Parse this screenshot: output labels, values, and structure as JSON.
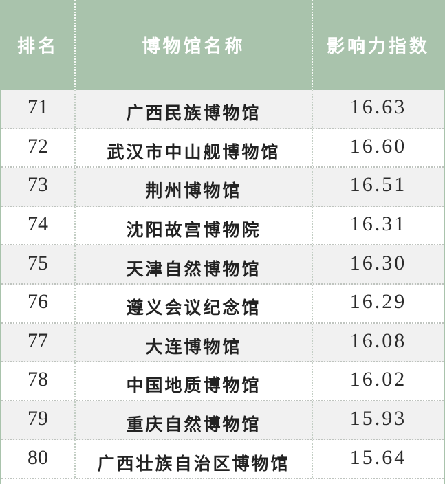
{
  "chart_data": {
    "type": "table",
    "columns": [
      "排名",
      "博物馆名称",
      "影响力指数"
    ],
    "rows": [
      {
        "rank": "71",
        "name": "广西民族博物馆",
        "index": "16.63"
      },
      {
        "rank": "72",
        "name": "武汉市中山舰博物馆",
        "index": "16.60"
      },
      {
        "rank": "73",
        "name": "荆州博物馆",
        "index": "16.51"
      },
      {
        "rank": "74",
        "name": "沈阳故宫博物院",
        "index": "16.31"
      },
      {
        "rank": "75",
        "name": "天津自然博物馆",
        "index": "16.30"
      },
      {
        "rank": "76",
        "name": "遵义会议纪念馆",
        "index": "16.29"
      },
      {
        "rank": "77",
        "name": "大连博物馆",
        "index": "16.08"
      },
      {
        "rank": "78",
        "name": "中国地质博物馆",
        "index": "16.02"
      },
      {
        "rank": "79",
        "name": "重庆自然博物馆",
        "index": "15.93"
      },
      {
        "rank": "80",
        "name": "广西壮族自治区博物馆",
        "index": "15.64"
      }
    ]
  },
  "colors": {
    "header_bg": "#a9c3ac",
    "header_text": "#ffffff",
    "outer_border": "#a9c3ac",
    "row_alt_bg": "#f1f1f1",
    "row_bg": "#ffffff",
    "body_text": "#2b2b2b",
    "row_divider_dots": "#bfc4bf",
    "col_divider_dots": "#c3cec4"
  }
}
